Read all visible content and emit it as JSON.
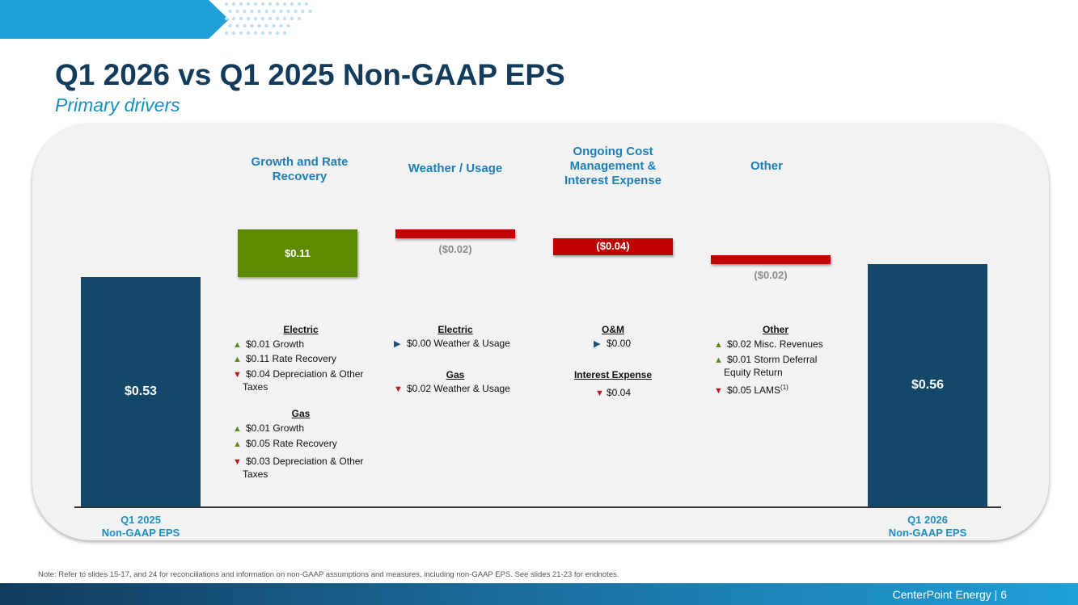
{
  "header": {
    "title": "Q1 2026 vs Q1 2025 Non-GAAP EPS",
    "subtitle": "Primary drivers"
  },
  "categories_headers": {
    "growth": "Growth and Rate Recovery",
    "weather": "Weather / Usage",
    "cost": "Ongoing Cost Management & Interest Expense",
    "other": "Other"
  },
  "chart_data": {
    "type": "bar",
    "subtype": "waterfall",
    "categories": [
      "Q1 2025 Non-GAAP EPS",
      "Growth and Rate Recovery",
      "Weather / Usage",
      "Ongoing Cost Management & Interest Expense",
      "Other",
      "Q1 2026 Non-GAAP EPS"
    ],
    "values": [
      0.53,
      0.11,
      -0.02,
      -0.04,
      -0.02,
      0.56
    ],
    "value_labels": [
      "$0.53",
      "$0.11",
      "($0.02)",
      "($0.04)",
      "($0.02)",
      "$0.56"
    ],
    "colors": {
      "total": "#13486a",
      "increase": "#5e8a00",
      "decrease": "#c00000"
    },
    "axis_labels": [
      "Q1 2025",
      "Non-GAAP EPS",
      "Q1 2026",
      "Non-GAAP EPS"
    ]
  },
  "drivers": {
    "growth": {
      "electric_head": "Electric",
      "electric": [
        {
          "dir": "up",
          "text": "$0.01 Growth"
        },
        {
          "dir": "up",
          "text": "$0.11 Rate Recovery"
        },
        {
          "dir": "down",
          "text": "$0.04 Depreciation & Other",
          "text2": "Taxes"
        }
      ],
      "gas_head": "Gas",
      "gas": [
        {
          "dir": "up",
          "text": "$0.01 Growth"
        },
        {
          "dir": "up",
          "text": "$0.05 Rate Recovery"
        },
        {
          "dir": "down",
          "text": "$0.03 Depreciation & Other",
          "text2": "Taxes"
        }
      ]
    },
    "weather": {
      "electric_head": "Electric",
      "electric": [
        {
          "dir": "right",
          "text": "$0.00 Weather & Usage"
        }
      ],
      "gas_head": "Gas",
      "gas": [
        {
          "dir": "down",
          "text": "$0.02 Weather & Usage"
        }
      ]
    },
    "cost": {
      "om_head": "O&M",
      "om": [
        {
          "dir": "right",
          "text": "$0.00"
        }
      ],
      "interest_head": "Interest Expense",
      "interest": [
        {
          "dir": "down",
          "text": "$0.04"
        }
      ]
    },
    "other": {
      "head": "Other",
      "items": [
        {
          "dir": "up",
          "text": "$0.02 Misc. Revenues"
        },
        {
          "dir": "up",
          "text": "$0.01 Storm Deferral",
          "text2": "Equity Return"
        },
        {
          "dir": "down",
          "text": "$0.05 LAMS",
          "sup": "(1)"
        }
      ]
    }
  },
  "footer": {
    "note": "Note: Refer to slides 15-17, and 24 for reconciliations and information on non-GAAP assumptions and measures, including non-GAAP EPS. See slides 21-23 for endnotes.",
    "company": "CenterPoint Energy",
    "separator": "|",
    "page": "6"
  }
}
